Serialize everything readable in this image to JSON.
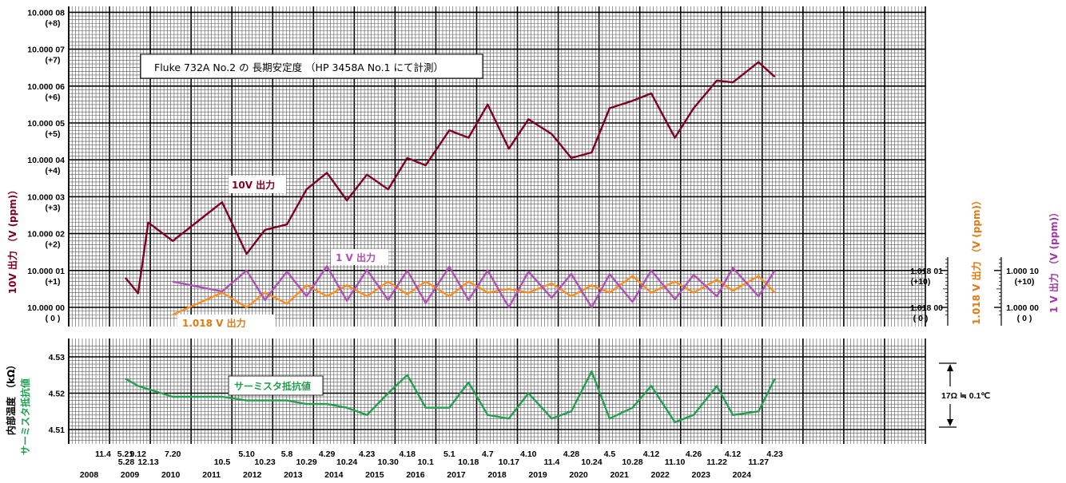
{
  "chart_data": [
    {
      "type": "line",
      "title": "Fluke 732A No.2 の 長期安定度 （HP 3458A No.1 にて計測）",
      "x_years": [
        "2008",
        "2009",
        "2010",
        "2011",
        "2012",
        "2013",
        "2014",
        "2015",
        "2016",
        "2017",
        "2018",
        "2019",
        "2020",
        "2021",
        "2022",
        "2023",
        "2024"
      ],
      "x_dates": [
        {
          "label": "11.4",
          "row": 0,
          "year": 2008.84
        },
        {
          "label": "5.21",
          "row": 0,
          "year": 2009.39
        },
        {
          "label": "5.28",
          "row": 1,
          "year": 2009.41
        },
        {
          "label": "9.12",
          "row": 0,
          "year": 2009.7
        },
        {
          "label": "12.13",
          "row": 1,
          "year": 2009.95
        },
        {
          "label": "7.20",
          "row": 0,
          "year": 2010.55
        },
        {
          "label": "10.5",
          "row": 1,
          "year": 2011.76
        },
        {
          "label": "5.10",
          "row": 0,
          "year": 2012.36
        },
        {
          "label": "10.23",
          "row": 1,
          "year": 2012.81
        },
        {
          "label": "5.8",
          "row": 0,
          "year": 2013.35
        },
        {
          "label": "10.29",
          "row": 1,
          "year": 2013.83
        },
        {
          "label": "4.29",
          "row": 0,
          "year": 2014.33
        },
        {
          "label": "10.24",
          "row": 1,
          "year": 2014.82
        },
        {
          "label": "4.23",
          "row": 0,
          "year": 2015.31
        },
        {
          "label": "10.30",
          "row": 1,
          "year": 2015.83
        },
        {
          "label": "4.18",
          "row": 0,
          "year": 2016.3
        },
        {
          "label": "10.1",
          "row": 1,
          "year": 2016.75
        },
        {
          "label": "5.1",
          "row": 0,
          "year": 2017.33
        },
        {
          "label": "10.18",
          "row": 1,
          "year": 2017.8
        },
        {
          "label": "4.7",
          "row": 0,
          "year": 2018.27
        },
        {
          "label": "10.17",
          "row": 1,
          "year": 2018.79
        },
        {
          "label": "4.10",
          "row": 0,
          "year": 2019.27
        },
        {
          "label": "11.4",
          "row": 1,
          "year": 2019.84
        },
        {
          "label": "4.28",
          "row": 0,
          "year": 2020.32
        },
        {
          "label": "10.24",
          "row": 1,
          "year": 2020.82
        },
        {
          "label": "4.5",
          "row": 0,
          "year": 2021.26
        },
        {
          "label": "10.28",
          "row": 1,
          "year": 2021.82
        },
        {
          "label": "4.12",
          "row": 0,
          "year": 2022.28
        },
        {
          "label": "11.10",
          "row": 1,
          "year": 2022.86
        },
        {
          "label": "4.26",
          "row": 0,
          "year": 2023.32
        },
        {
          "label": "11.22",
          "row": 1,
          "year": 2023.89
        },
        {
          "label": "4.12",
          "row": 0,
          "year": 2024.28
        },
        {
          "label": "11.27",
          "row": 1,
          "year": 2024.91
        },
        {
          "label": "4.23",
          "row": 0,
          "year": 2025.31
        }
      ],
      "y_left_ticks": [
        {
          "v": 0,
          "l1": "10.000 00",
          "l2": "( 0 )"
        },
        {
          "v": 1,
          "l1": "10.000 01",
          "l2": "(+1)"
        },
        {
          "v": 2,
          "l1": "10.000 02",
          "l2": "(+2)"
        },
        {
          "v": 3,
          "l1": "10.000 03",
          "l2": "(+3)"
        },
        {
          "v": 4,
          "l1": "10.000 04",
          "l2": "(+4)"
        },
        {
          "v": 5,
          "l1": "10.000 05",
          "l2": "(+5)"
        },
        {
          "v": 6,
          "l1": "10.000 06",
          "l2": "(+6)"
        },
        {
          "v": 7,
          "l1": "10.000 07",
          "l2": "(+7)"
        },
        {
          "v": 8,
          "l1": "10.000 08",
          "l2": "(+8)"
        }
      ],
      "y_left_label": "10V 出力 （V (ppm)）",
      "y_mid_ticks": [
        {
          "v": 0,
          "l1": "1.018 00",
          "l2": "( 0 )"
        },
        {
          "v": 1,
          "l1": "1.018 01",
          "l2": "(+10)"
        }
      ],
      "y_mid_label": "1.018 V 出力 （V (ppm)）",
      "y_right_ticks": [
        {
          "v": 0,
          "l1": "1.000 00",
          "l2": "( 0 )"
        },
        {
          "v": 1,
          "l1": "1.000 10",
          "l2": "(+10)"
        }
      ],
      "y_right_label": "1 V 出力 （V (ppm)）",
      "series": [
        {
          "name": "10V 出力",
          "color": "#800020",
          "x": [
            2009.39,
            2009.7,
            2009.95,
            2010.55,
            2011.76,
            2012.36,
            2012.81,
            2013.35,
            2013.83,
            2014.33,
            2014.82,
            2015.31,
            2015.83,
            2016.3,
            2016.75,
            2017.33,
            2017.8,
            2018.27,
            2018.79,
            2019.27,
            2019.84,
            2020.32,
            2020.82,
            2021.26,
            2021.82,
            2022.28,
            2022.86,
            2023.32,
            2023.89,
            2024.28,
            2024.91,
            2025.31
          ],
          "y": [
            0.8,
            0.38,
            2.3,
            1.8,
            2.85,
            1.45,
            2.1,
            2.25,
            3.2,
            3.65,
            2.9,
            3.6,
            3.2,
            4.05,
            3.85,
            4.8,
            4.6,
            5.5,
            4.3,
            5.1,
            4.7,
            4.05,
            4.2,
            5.4,
            5.6,
            5.8,
            4.6,
            5.4,
            6.15,
            6.1,
            6.65,
            6.25
          ]
        },
        {
          "name": "1 V 出力",
          "color": "#b04fb6",
          "x": [
            2010.55,
            2011.76,
            2012.36,
            2012.81,
            2013.35,
            2013.83,
            2014.33,
            2014.82,
            2015.31,
            2015.83,
            2016.3,
            2016.75,
            2017.33,
            2017.8,
            2018.27,
            2018.79,
            2019.27,
            2019.84,
            2020.32,
            2020.82,
            2021.26,
            2021.82,
            2022.28,
            2022.86,
            2023.32,
            2023.89,
            2024.28,
            2024.91,
            2025.31
          ],
          "y": [
            0.7,
            0.43,
            1.0,
            0.2,
            0.97,
            0.3,
            1.12,
            0.18,
            1.02,
            0.2,
            1.0,
            0.12,
            1.1,
            0.2,
            1.0,
            0.0,
            0.97,
            0.26,
            0.91,
            0.0,
            0.9,
            0.15,
            1.0,
            0.22,
            0.88,
            0.3,
            1.07,
            0.3,
            1.0
          ]
        },
        {
          "name": "1.018 V 出力",
          "color": "#ff8c1a",
          "x": [
            2010.55,
            2011.76,
            2012.36,
            2012.81,
            2013.35,
            2013.83,
            2014.33,
            2014.82,
            2015.31,
            2015.83,
            2016.3,
            2016.75,
            2017.33,
            2017.8,
            2018.27,
            2018.79,
            2019.27,
            2019.84,
            2020.32,
            2020.82,
            2021.26,
            2021.82,
            2022.28,
            2022.86,
            2023.32,
            2023.89,
            2024.28,
            2024.91,
            2025.31
          ],
          "y": [
            -0.2,
            0.4,
            0.0,
            0.4,
            0.1,
            0.6,
            0.3,
            0.6,
            0.3,
            0.7,
            0.35,
            0.7,
            0.3,
            0.7,
            0.4,
            0.5,
            0.4,
            0.65,
            0.3,
            0.6,
            0.4,
            0.85,
            0.4,
            0.7,
            0.4,
            0.75,
            0.45,
            0.85,
            0.4
          ]
        }
      ],
      "labels": [
        {
          "text": "10V 出力",
          "color": "#800020"
        },
        {
          "text": "1 V 出力",
          "color": "#b04fb6"
        },
        {
          "text": "1.018 V 出力",
          "color": "#e07a10"
        }
      ],
      "ylim_left": [
        -0.35,
        8.2
      ]
    },
    {
      "type": "line",
      "y_ticks": [
        4.51,
        4.52,
        4.53
      ],
      "y_label_top": "内部温度 （kΩ）",
      "y_label_bottom": "サーミスタ抵抗値",
      "series": [
        {
          "name": "サーミスタ抵抗値",
          "color": "#22a050",
          "x": [
            2009.39,
            2009.7,
            2010.55,
            2011.76,
            2012.36,
            2012.81,
            2013.35,
            2013.83,
            2014.33,
            2014.82,
            2015.31,
            2015.83,
            2016.3,
            2016.75,
            2017.33,
            2017.8,
            2018.27,
            2018.79,
            2019.27,
            2019.84,
            2020.32,
            2020.82,
            2021.26,
            2021.82,
            2022.28,
            2022.86,
            2023.32,
            2023.89,
            2024.28,
            2024.91,
            2025.31
          ],
          "y": [
            4.524,
            4.522,
            4.519,
            4.519,
            4.518,
            4.518,
            4.518,
            4.517,
            4.517,
            4.516,
            4.514,
            4.52,
            4.525,
            4.516,
            4.516,
            4.523,
            4.514,
            4.513,
            4.52,
            4.513,
            4.515,
            4.526,
            4.513,
            4.516,
            4.522,
            4.512,
            4.514,
            4.522,
            4.514,
            4.515,
            4.524
          ]
        }
      ],
      "annotation": "17Ω ≒ 0.1℃",
      "ylim": [
        4.507,
        4.5335
      ]
    }
  ]
}
